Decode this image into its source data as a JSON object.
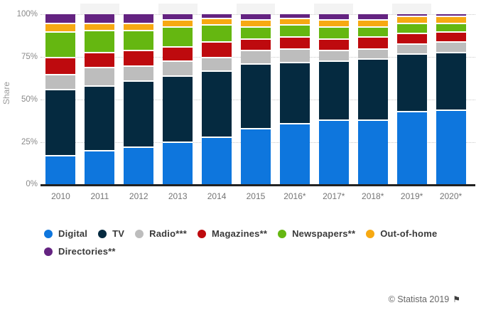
{
  "chart_data": {
    "type": "bar",
    "stacked": true,
    "ylabel": "Share",
    "ylim": [
      0,
      100
    ],
    "yticks": [
      "0%",
      "25%",
      "50%",
      "75%",
      "100%"
    ],
    "grid": "dotted horizontal at 25% steps",
    "legend_position": "bottom",
    "column_stripes": "odd categories have light gray background cap above bars",
    "categories": [
      "2010",
      "2011",
      "2012",
      "2013",
      "2014",
      "2015",
      "2016*",
      "2017*",
      "2018*",
      "2019*",
      "2020*"
    ],
    "series": [
      {
        "name": "Digital",
        "color": "#0e76dd",
        "values": [
          17,
          20,
          22,
          25,
          28,
          33,
          36,
          38,
          38,
          43,
          44
        ]
      },
      {
        "name": "TV",
        "color": "#052a40",
        "values": [
          39,
          38,
          39,
          39,
          39,
          38,
          36,
          35,
          36,
          34,
          34
        ]
      },
      {
        "name": "Radio***",
        "color": "#bdbdbd",
        "values": [
          9,
          11,
          9,
          9,
          8,
          8,
          8,
          6,
          6,
          6,
          6
        ]
      },
      {
        "name": "Magazines**",
        "color": "#be0a0e",
        "values": [
          10,
          9,
          9,
          8,
          9,
          7,
          7,
          7,
          7,
          6,
          6
        ]
      },
      {
        "name": "Newspapers**",
        "color": "#65b711",
        "values": [
          15,
          13,
          12,
          12,
          10,
          7,
          7,
          7,
          6,
          6,
          5
        ]
      },
      {
        "name": "Out-of-home",
        "color": "#f7a912",
        "values": [
          5,
          4,
          4,
          4,
          4,
          4,
          4,
          4,
          4,
          4,
          4
        ]
      },
      {
        "name": "Directories**",
        "color": "#642381",
        "values": [
          5,
          5,
          5,
          3,
          2,
          3,
          2,
          3,
          3,
          1,
          1
        ]
      }
    ]
  },
  "colors": {
    "stripe": "#f3f3f3",
    "axis_line": "#222222",
    "gridline": "#c9c9c9"
  },
  "footer": {
    "copyright": "© Statista 2019",
    "flag_icon": "⚑"
  }
}
